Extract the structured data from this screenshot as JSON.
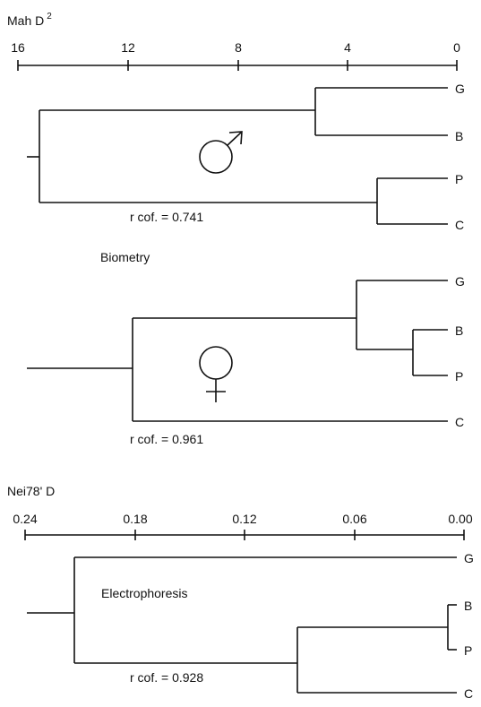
{
  "axis_top": {
    "label": "Mah D",
    "label_sup": "2",
    "ticks": [
      "16",
      "12",
      "8",
      "4",
      "0"
    ]
  },
  "axis_bottom": {
    "label": "Nei78' D",
    "ticks": [
      "0.24",
      "0.18",
      "0.12",
      "0.06",
      "0.00"
    ]
  },
  "dendrogram_male": {
    "leaves": [
      "G",
      "B",
      "P",
      "C"
    ],
    "symbol": "male-symbol",
    "r_cof": "r cof. = 0.741"
  },
  "biometry_label": "Biometry",
  "dendrogram_female": {
    "leaves": [
      "G",
      "B",
      "P",
      "C"
    ],
    "symbol": "female-symbol",
    "r_cof": "r cof. = 0.961"
  },
  "electrophoresis_label": "Electrophoresis",
  "dendrogram_electro": {
    "leaves": [
      "G",
      "B",
      "P",
      "C"
    ],
    "r_cof": "r cof. = 0.928"
  }
}
